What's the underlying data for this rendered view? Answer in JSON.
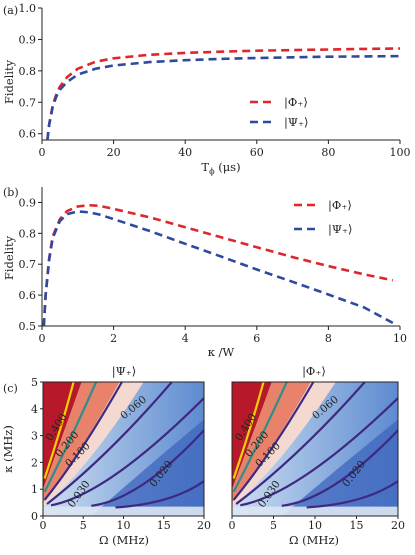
{
  "chart_data": [
    {
      "panel": "(a)",
      "type": "line",
      "xlabel": "T",
      "xlabel_sub": "ϕ",
      "xlabel_unit": " (μs)",
      "ylabel": "Fidelity",
      "xlim": [
        0,
        100
      ],
      "ylim": [
        0.58,
        1.0
      ],
      "xticks": [
        "0",
        "20",
        "40",
        "60",
        "80",
        "100"
      ],
      "yticks": [
        "0.6",
        "0.7",
        "0.8",
        "0.9",
        "1.0"
      ],
      "legend_position": "center-right",
      "series": [
        {
          "name": "|Φ₊⟩",
          "color": "#e0262d",
          "style": "dashed",
          "x": [
            1.5,
            2,
            3,
            4,
            5,
            7,
            10,
            15,
            20,
            30,
            40,
            50,
            60,
            70,
            80,
            90,
            100
          ],
          "y": [
            0.58,
            0.63,
            0.69,
            0.725,
            0.75,
            0.78,
            0.807,
            0.829,
            0.84,
            0.851,
            0.857,
            0.861,
            0.864,
            0.866,
            0.868,
            0.87,
            0.871
          ]
        },
        {
          "name": "|Ψ₊⟩",
          "color": "#2e4a9e",
          "style": "dashed",
          "x": [
            1.5,
            2,
            3,
            4,
            5,
            7,
            10,
            15,
            20,
            30,
            40,
            50,
            60,
            70,
            80,
            90,
            100
          ],
          "y": [
            0.58,
            0.63,
            0.685,
            0.718,
            0.74,
            0.765,
            0.788,
            0.807,
            0.817,
            0.828,
            0.834,
            0.838,
            0.841,
            0.843,
            0.845,
            0.846,
            0.847
          ]
        }
      ]
    },
    {
      "panel": "(b)",
      "type": "line",
      "xlabel": "κ /W",
      "ylabel": "Fidelity",
      "xlim": [
        0,
        10
      ],
      "ylim": [
        0.5,
        0.95
      ],
      "xticks": [
        "0",
        "2",
        "4",
        "6",
        "8",
        "10"
      ],
      "yticks": [
        "0.5",
        "0.6",
        "0.7",
        "0.8",
        "0.9"
      ],
      "legend_position": "top-right",
      "series": [
        {
          "name": "|Φ₊⟩",
          "color": "#e0262d",
          "style": "dashed",
          "x": [
            0.05,
            0.1,
            0.2,
            0.3,
            0.5,
            0.7,
            1.0,
            1.3,
            1.6,
            2,
            3,
            4,
            5,
            6,
            7,
            8,
            9,
            9.8
          ],
          "y": [
            0.5,
            0.6,
            0.72,
            0.79,
            0.846,
            0.872,
            0.887,
            0.891,
            0.889,
            0.879,
            0.852,
            0.82,
            0.787,
            0.755,
            0.723,
            0.694,
            0.667,
            0.648
          ]
        },
        {
          "name": "|Ψ₊⟩",
          "color": "#2e4a9e",
          "style": "dashed",
          "x": [
            0.05,
            0.1,
            0.2,
            0.3,
            0.5,
            0.7,
            1.0,
            1.3,
            1.6,
            2,
            3,
            4,
            5,
            6,
            7,
            8,
            9,
            9.8
          ],
          "y": [
            0.5,
            0.6,
            0.715,
            0.785,
            0.84,
            0.862,
            0.871,
            0.868,
            0.861,
            0.846,
            0.808,
            0.766,
            0.725,
            0.683,
            0.643,
            0.602,
            0.56,
            0.51
          ]
        }
      ]
    },
    {
      "panel": "(c)",
      "type": "heatmap",
      "title": "|Ψ₊⟩",
      "xlabel": "Ω (MHz)",
      "ylabel": "κ (MHz)",
      "xlim": [
        0,
        20
      ],
      "ylim": [
        0,
        5
      ],
      "xticks": [
        "0",
        "5",
        "10",
        "15",
        "20"
      ],
      "yticks": [
        "0",
        "1",
        "2",
        "3",
        "4",
        "5"
      ],
      "contour_labels": [
        "0.400",
        "0.200",
        "0.100",
        "0.060",
        "0.030",
        "0.020"
      ]
    },
    {
      "panel": "(c)",
      "type": "heatmap",
      "title": "|Φ₊⟩",
      "xlabel": "Ω (MHz)",
      "xlim": [
        0,
        20
      ],
      "ylim": [
        0,
        5
      ],
      "xticks": [
        "0",
        "5",
        "10",
        "15",
        "20"
      ],
      "contour_labels": [
        "0.400",
        "0.200",
        "0.100",
        "0.060",
        "0.030",
        "0.020"
      ]
    }
  ]
}
